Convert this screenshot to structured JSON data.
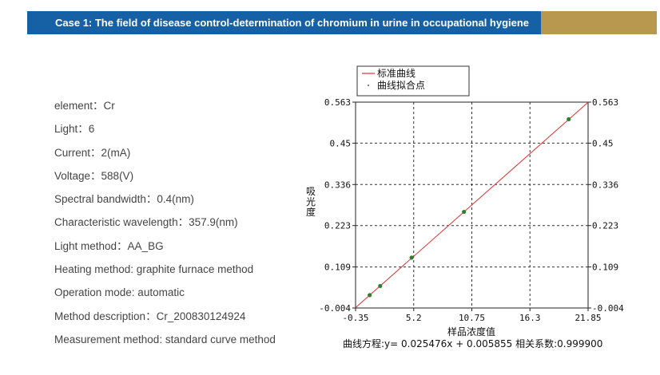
{
  "banner": {
    "title": "Case 1: The field of disease control-determination of chromium in urine in occupational hygiene",
    "accent_color": "#b8974f",
    "bar_color": "#1660a6"
  },
  "params": [
    "element：Cr",
    "Light：6",
    "Current：2(mA)",
    "Voltage：588(V)",
    "Spectral bandwidth：0.4(nm)",
    "Characteristic wavelength：357.9(nm)",
    "Light method：AA_BG",
    "Heating method: graphite furnace method",
    "Operation mode: automatic",
    "Method description：Cr_200830124924",
    "Measurement method: standard curve method"
  ],
  "chart_data": {
    "type": "scatter",
    "title": "",
    "xlabel": "样品浓度值",
    "ylabel": "吸光度",
    "xlim": [
      -0.35,
      21.85
    ],
    "ylim": [
      -0.004,
      0.563
    ],
    "x_ticks": [
      "-0.35",
      "5.2",
      "10.75",
      "16.3",
      "21.85"
    ],
    "x_tick_values": [
      -0.35,
      5.2,
      10.75,
      16.3,
      21.85
    ],
    "y_ticks": [
      "0.563",
      "0.45",
      "0.336",
      "0.223",
      "0.109",
      "-0.004"
    ],
    "y_tick_values": [
      0.563,
      0.45,
      0.336,
      0.223,
      0.109,
      -0.004
    ],
    "grid": true,
    "legend_position": "top-left",
    "legend": [
      "标准曲线",
      "曲线拟合点"
    ],
    "fit_line": {
      "name": "标准曲线",
      "slope": 0.025476,
      "intercept": 0.005855,
      "x_range": [
        -0.35,
        21.85
      ],
      "color": "#e03030"
    },
    "series": [
      {
        "name": "曲线拟合点",
        "color": "#2e7d32",
        "x": [
          1.0,
          2.0,
          5.0,
          10.0,
          20.0
        ],
        "y": [
          0.0314,
          0.0566,
          0.1347,
          0.2607,
          0.5159
        ]
      }
    ],
    "equation": "曲线方程:y= 0.025476x + 0.005855 相关系数:0.999900"
  }
}
